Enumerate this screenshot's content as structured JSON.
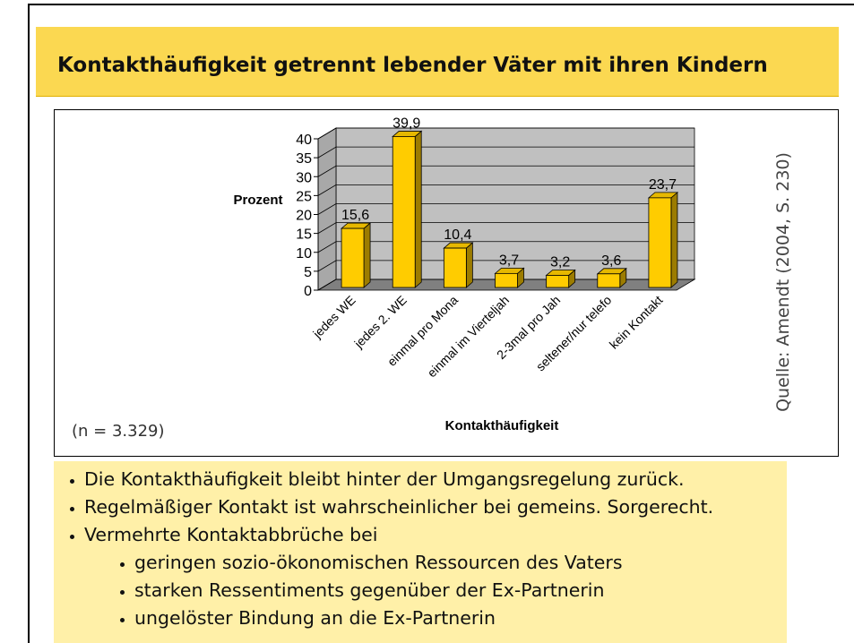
{
  "slide_title": "Kontakthäufigkeit getrennt lebender Väter mit ihren Kindern",
  "chart_data": {
    "type": "bar3d",
    "categories": [
      "jedes WE",
      "jedes 2. WE",
      "einmal pro Mona",
      "einmal im Vierteljah",
      "2-3mal pro Jah",
      "seltener/nur telefo",
      "kein Kontakt"
    ],
    "values": [
      15.6,
      39.9,
      10.4,
      3.7,
      3.2,
      3.6,
      23.7
    ],
    "value_labels": [
      "15,6",
      "39,9",
      "10,4",
      "3,7",
      "3,2",
      "3,6",
      "23,7"
    ],
    "color": "#ffcc00",
    "ylim": [
      0,
      40
    ],
    "yticks": [
      0,
      5,
      10,
      15,
      20,
      25,
      30,
      35,
      40
    ],
    "grid": true,
    "y_label": "Prozent",
    "x_label": "Kontakthäufigkeit",
    "note": "(n = 3.329)",
    "source": "Quelle: Amendt (2004, S. 230)"
  },
  "bullets": [
    "Die Kontakthäufigkeit bleibt hinter der Umgangsregelung zurück.",
    "Regelmäßiger Kontakt ist wahrscheinlicher bei gemeins. Sorgerecht.",
    "Vermehrte Kontaktabbrüche bei"
  ],
  "sub_bullets": [
    "geringen sozio-ökonomischen Ressourcen des Vaters",
    "starken Ressentiments gegenüber der Ex-Partnerin",
    "ungelöster Bindung an die Ex-Partnerin"
  ]
}
